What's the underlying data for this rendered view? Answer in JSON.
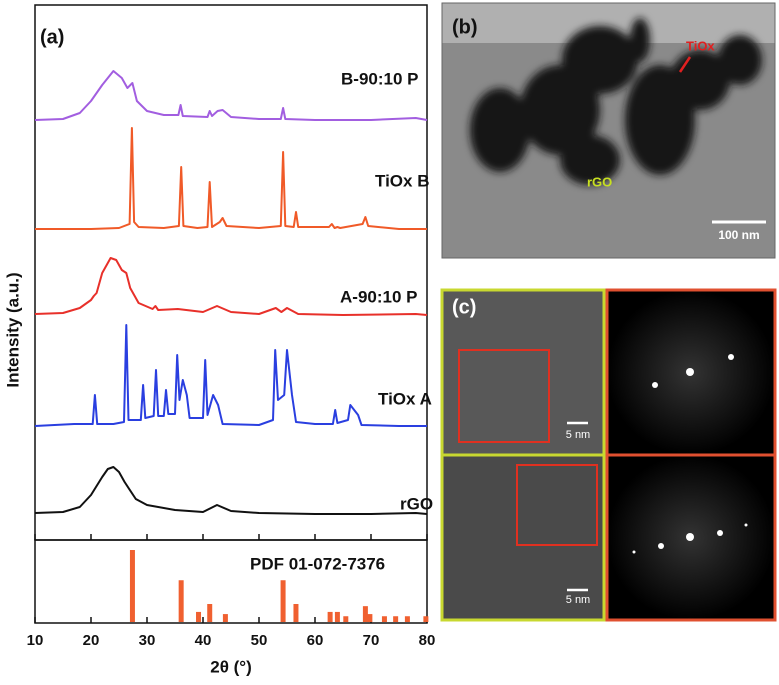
{
  "chart_data": {
    "type": "line",
    "panel": "(a)",
    "xlabel": "2θ (°)",
    "ylabel": "Intensity (a.u.)",
    "xlim": [
      10,
      80
    ],
    "xticks": [
      10,
      20,
      30,
      40,
      50,
      60,
      70,
      80
    ],
    "series": [
      {
        "name": "B-90:10 P",
        "color": "#a25ee0",
        "x": [
          10,
          15,
          18,
          20,
          22,
          24,
          25.5,
          26.5,
          27.4,
          28.2,
          30,
          33,
          35.6,
          36,
          36.4,
          40.8,
          41.2,
          41.6,
          42.6,
          43.5,
          45,
          50,
          53.9,
          54.3,
          54.7,
          60,
          70,
          78,
          80
        ],
        "values": [
          3,
          4,
          10,
          22,
          38,
          52,
          45,
          35,
          40,
          22,
          12,
          8,
          8,
          18,
          7,
          6,
          12,
          7,
          12,
          13,
          6,
          4,
          4,
          15,
          4,
          3,
          3,
          5,
          3
        ]
      },
      {
        "name": "TiOx B",
        "color": "#f05a28",
        "x": [
          10,
          20,
          25,
          26.9,
          27.3,
          27.7,
          28.5,
          33,
          35.7,
          36.1,
          36.5,
          39,
          40.8,
          41.2,
          41.6,
          43,
          43.5,
          44.2,
          50,
          53.9,
          54.3,
          54.7,
          56.2,
          56.6,
          57,
          62.5,
          63,
          63.5,
          64,
          64.5,
          68.5,
          69,
          69.5,
          75,
          80
        ],
        "values": [
          3,
          3,
          4,
          8,
          104,
          10,
          5,
          4,
          6,
          65,
          6,
          4,
          5,
          50,
          5,
          10,
          14,
          6,
          4,
          6,
          80,
          6,
          5,
          20,
          5,
          5,
          8,
          4,
          5,
          4,
          8,
          15,
          6,
          3,
          3
        ]
      },
      {
        "name": "A-90:10 P",
        "color": "#e8302a",
        "x": [
          10,
          15,
          18,
          20,
          20.5,
          21,
          22,
          23.5,
          24.5,
          25.5,
          26.3,
          27,
          28.5,
          31,
          31.5,
          32,
          35.5,
          40,
          42.5,
          45,
          50,
          53,
          54,
          55,
          57,
          65,
          78,
          80
        ],
        "values": [
          4,
          5,
          10,
          18,
          22,
          25,
          45,
          60,
          58,
          48,
          45,
          30,
          15,
          9,
          12,
          8,
          9,
          6,
          12,
          6,
          4,
          10,
          6,
          10,
          4,
          3,
          4,
          3
        ],
        "value_labels": null
      },
      {
        "name": "TiOx A",
        "color": "#2a3fe0",
        "x": [
          10,
          17,
          20.3,
          20.7,
          21.1,
          24,
          25.9,
          26.3,
          26.7,
          28.9,
          29.3,
          29.7,
          31.2,
          31.6,
          32,
          33,
          33.4,
          33.8,
          35,
          35.4,
          35.8,
          36.4,
          37.1,
          37.6,
          40,
          40.4,
          40.8,
          41.8,
          42.7,
          43.5,
          50,
          52.5,
          52.9,
          53.4,
          54.5,
          55,
          55.9,
          56.6,
          60,
          63.2,
          63.6,
          64,
          65.9,
          66.3,
          67.7,
          68.3,
          75,
          80
        ],
        "values": [
          4,
          6,
          6,
          35,
          6,
          6,
          8,
          105,
          10,
          10,
          45,
          12,
          14,
          60,
          14,
          14,
          40,
          16,
          16,
          75,
          30,
          50,
          35,
          12,
          12,
          70,
          15,
          35,
          25,
          6,
          5,
          10,
          80,
          30,
          35,
          80,
          35,
          8,
          6,
          6,
          20,
          7,
          10,
          25,
          15,
          5,
          4,
          4
        ]
      },
      {
        "name": "rGO",
        "color": "#111111",
        "x": [
          10,
          15,
          18,
          20,
          22,
          23,
          24,
          25,
          26,
          28,
          30,
          35,
          40,
          42.5,
          45,
          50,
          60,
          70,
          78,
          80
        ],
        "values": [
          4,
          5,
          10,
          22,
          40,
          48,
          50,
          45,
          35,
          18,
          12,
          7,
          5,
          12,
          6,
          4,
          3,
          3,
          4,
          3
        ]
      }
    ],
    "reference": {
      "name": "PDF 01-072-7376",
      "color": "#f06030",
      "x": [
        27.4,
        36.1,
        39.2,
        41.2,
        44,
        54.3,
        56.6,
        62.7,
        64,
        65.5,
        69,
        69.8,
        72.4,
        74.4,
        76.5,
        79.8
      ],
      "values": [
        100,
        58,
        14,
        25,
        11,
        58,
        25,
        14,
        14,
        8,
        22,
        11,
        8,
        8,
        8,
        8
      ]
    }
  },
  "panel_b": {
    "label": "(b)",
    "particle_label": "TiOx",
    "support_label": "rGO",
    "scale_bar": "100 nm"
  },
  "panel_c": {
    "label": "(c)",
    "scale_bars": [
      "5 nm",
      "5 nm"
    ]
  }
}
